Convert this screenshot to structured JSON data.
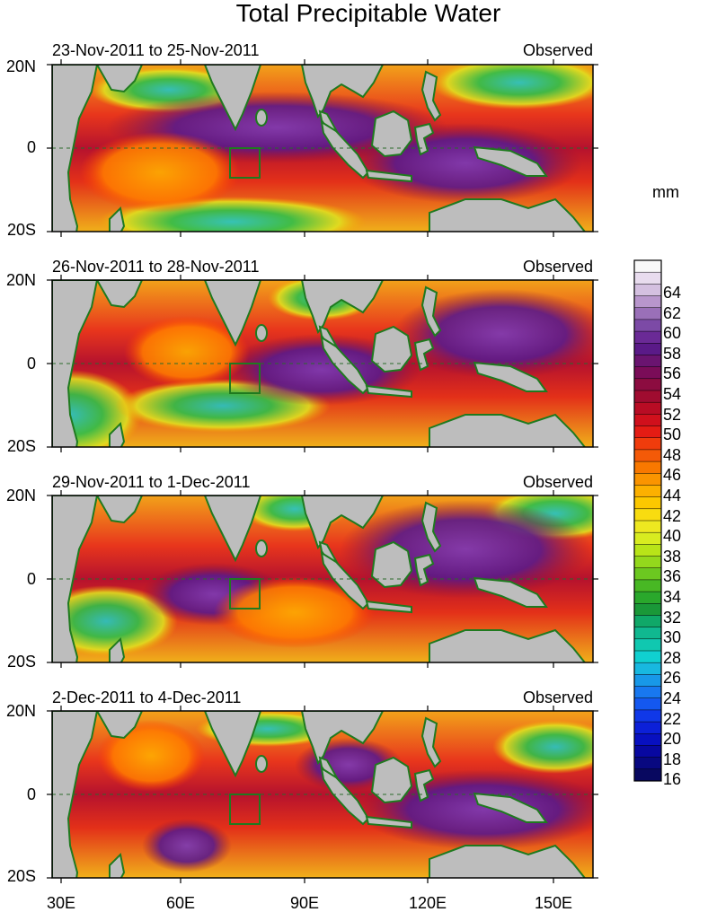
{
  "title": "Total Precipitable Water",
  "panels": [
    {
      "dates": "23-Nov-2011 to 25-Nov-2011",
      "tag": "Observed"
    },
    {
      "dates": "26-Nov-2011 to 28-Nov-2011",
      "tag": "Observed"
    },
    {
      "dates": "29-Nov-2011 to 1-Dec-2011",
      "tag": "Observed"
    },
    {
      "dates": "2-Dec-2011 to 4-Dec-2011",
      "tag": "Observed"
    }
  ],
  "lat_labels": [
    "20N",
    "0",
    "20S"
  ],
  "lon_labels": [
    "30E",
    "60E",
    "90E",
    "120E",
    "150E"
  ],
  "colorbar": {
    "unit": "mm",
    "labels": [
      "64",
      "62",
      "60",
      "58",
      "56",
      "54",
      "52",
      "50",
      "48",
      "46",
      "44",
      "42",
      "40",
      "38",
      "36",
      "34",
      "32",
      "30",
      "28",
      "26",
      "24",
      "22",
      "20",
      "18",
      "16"
    ]
  },
  "map": {
    "lon_range": [
      30,
      160
    ],
    "lat_range": [
      -20,
      20
    ],
    "land_color": "#bdbdbd",
    "coast_color": "#1f7a1f",
    "box_color": "#1f7a1f"
  }
}
